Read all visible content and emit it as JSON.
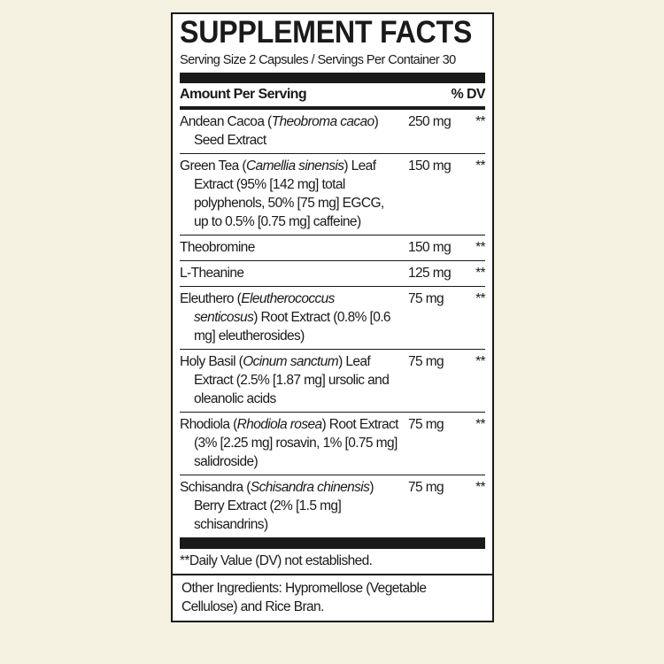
{
  "title": "SUPPLEMENT FACTS",
  "serving": "Serving Size 2 Capsules / Servings Per Container 30",
  "header": {
    "amount": "Amount Per Serving",
    "dv": "% DV"
  },
  "rows": [
    {
      "pre": "Andean Cacoa (",
      "it": "Theobroma cacao",
      "post": ") Seed Extract",
      "amount": "250 mg",
      "dv": "**"
    },
    {
      "pre": "Green Tea (",
      "it": "Camellia sinensis",
      "post": ") Leaf Extract (95% [142 mg] total polyphenols, 50% [75 mg] EGCG, up to 0.5% [0.75 mg] caffeine)",
      "amount": "150 mg",
      "dv": "**"
    },
    {
      "pre": "Theobromine",
      "it": "",
      "post": "",
      "amount": "150 mg",
      "dv": "**"
    },
    {
      "pre": "L-Theanine",
      "it": "",
      "post": "",
      "amount": "125 mg",
      "dv": "**"
    },
    {
      "pre": "Eleuthero (",
      "it": "Eleutherococcus senticosus",
      "post": ") Root Extract (0.8% [0.6 mg] eleutherosides)",
      "amount": "75 mg",
      "dv": "**"
    },
    {
      "pre": "Holy Basil (",
      "it": "Ocinum sanctum",
      "post": ") Leaf Extract (2.5% [1.87 mg] ursolic and oleanolic acids",
      "amount": "75 mg",
      "dv": "**"
    },
    {
      "pre": "Rhodiola (",
      "it": "Rhodiola rosea",
      "post": ") Root Extract (3% [2.25 mg] rosavin, 1% [0.75 mg] salidroside)",
      "amount": "75 mg",
      "dv": "**"
    },
    {
      "pre": "Schisandra (",
      "it": "Schisandra chinensis",
      "post": ") Berry Extract (2% [1.5 mg] schisandrins)",
      "amount": "75 mg",
      "dv": "**"
    }
  ],
  "footnote": "**Daily Value (DV) not established.",
  "other_ingredients": "Other Ingredients: Hypromellose (Vegetable Cellulose) and Rice Bran."
}
